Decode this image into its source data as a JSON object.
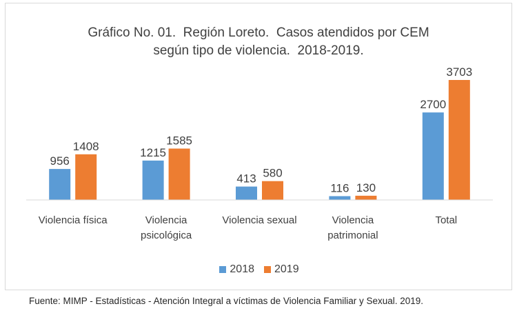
{
  "chart_data": {
    "type": "bar",
    "title_lines": [
      "Gráfico No. 01.  Región Loreto.  Casos atendidos por CEM",
      "según tipo de violencia.  2018-2019."
    ],
    "categories": [
      [
        "Violencia física"
      ],
      [
        "Violencia",
        "psicológica"
      ],
      [
        "Violencia sexual"
      ],
      [
        "Violencia",
        "patrimonial"
      ],
      [
        "Total"
      ]
    ],
    "series": [
      {
        "name": "2018",
        "values": [
          956,
          1215,
          413,
          116,
          2700
        ]
      },
      {
        "name": "2019",
        "values": [
          1408,
          1585,
          580,
          130,
          3703
        ]
      }
    ],
    "ylim": [
      0,
      3703
    ],
    "grid": false,
    "legend_position": "bottom"
  },
  "colors": {
    "2018": "#5b9bd5",
    "2019": "#ed7d31",
    "axis": "#d9d9d9",
    "text": "#404040"
  },
  "source": "Fuente: MIMP - Estadísticas - Atención Integral a víctimas de Violencia Familiar y Sexual.  2019."
}
